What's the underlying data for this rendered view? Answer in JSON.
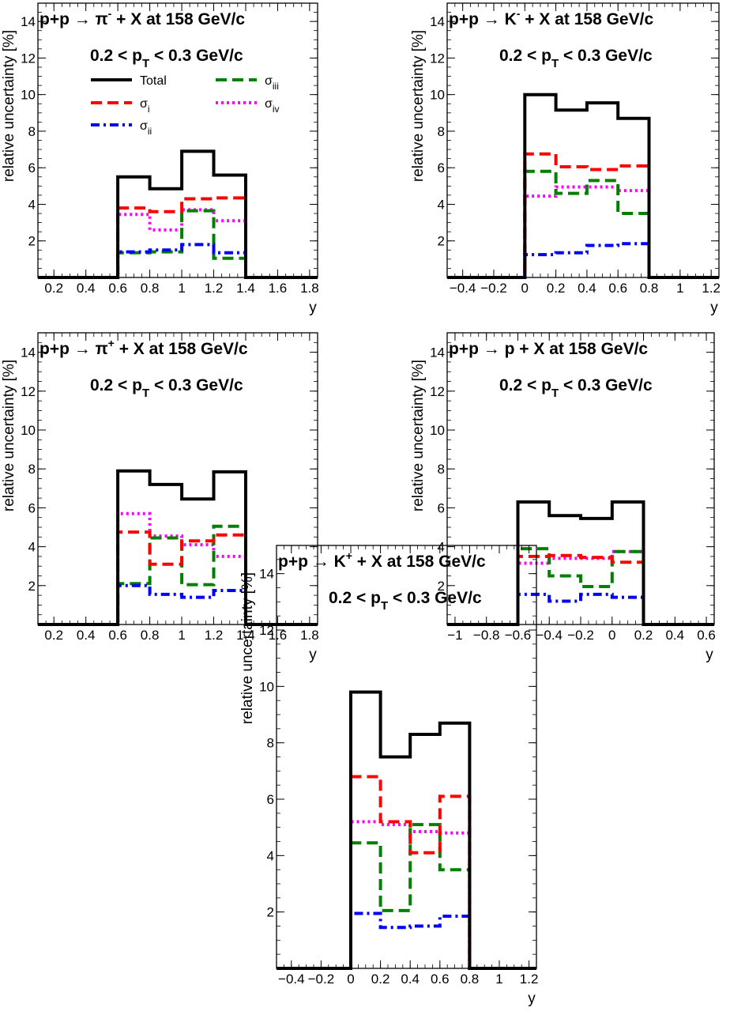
{
  "chart_data": [
    {
      "type": "line",
      "step": true,
      "title": "p+p → π⁻ + X at 158 GeV/c",
      "title_parts": {
        "lhs": "p+p",
        "arrow": "→",
        "particle": "π",
        "charge": "-",
        "rhs": "+ X at 158 GeV/c"
      },
      "subtitle_parts": {
        "pre": "0.2 < p",
        "sub": "T",
        "post": "< 0.3  GeV/c"
      },
      "xlabel": "y",
      "ylabel": "relative uncertainty [%]",
      "xlim": [
        0.1,
        1.85
      ],
      "ylim": [
        0,
        15
      ],
      "xticks": [
        0.2,
        0.4,
        0.6,
        0.8,
        1,
        1.2,
        1.4,
        1.6,
        1.8
      ],
      "xtick_labels": [
        "0.2",
        "0.4",
        "0.6",
        "0.8",
        "1",
        "1.2",
        "1.4",
        "1.6",
        "1.8"
      ],
      "yticks": [
        2,
        4,
        6,
        8,
        10,
        12,
        14
      ],
      "ytick_labels": [
        "2",
        "4",
        "6",
        "8",
        "10",
        "12",
        "14"
      ],
      "bin_edges": [
        0.1,
        0.6,
        0.8,
        1.0,
        1.2,
        1.4,
        1.85
      ],
      "legend": {
        "show": true,
        "placement": "top-left"
      },
      "series": [
        {
          "name": "Total",
          "color": "#000000",
          "style": "solid",
          "values": [
            0,
            5.5,
            4.85,
            6.9,
            5.6,
            0
          ]
        },
        {
          "name": "σ_i",
          "color": "#ff0000",
          "style": "dash",
          "values": [
            0,
            3.8,
            3.6,
            4.3,
            4.35,
            0
          ]
        },
        {
          "name": "σ_ii",
          "color": "#0000ff",
          "style": "dashdot",
          "values": [
            0,
            1.4,
            1.5,
            1.8,
            1.35,
            0
          ]
        },
        {
          "name": "σ_iii",
          "color": "#008000",
          "style": "dash",
          "values": [
            0,
            1.35,
            1.4,
            3.65,
            1.05,
            0
          ]
        },
        {
          "name": "σ_iv",
          "color": "#ff00ff",
          "style": "dot",
          "values": [
            0,
            3.45,
            2.6,
            3.7,
            3.1,
            0
          ]
        }
      ]
    },
    {
      "type": "line",
      "step": true,
      "title": "p+p → K⁻ + X at 158 GeV/c",
      "title_parts": {
        "lhs": "p+p",
        "arrow": "→",
        "particle": "K",
        "charge": "-",
        "rhs": "+ X at 158 GeV/c"
      },
      "subtitle_parts": {
        "pre": "0.2 < p",
        "sub": "T",
        "post": "< 0.3  GeV/c"
      },
      "xlabel": "y",
      "ylabel": "relative uncertainty [%]",
      "xlim": [
        -0.5,
        1.25
      ],
      "ylim": [
        0,
        15
      ],
      "xticks": [
        -0.4,
        -0.2,
        0,
        0.2,
        0.4,
        0.6,
        0.8,
        1,
        1.2
      ],
      "xtick_labels": [
        "−0.4",
        "−0.2",
        "0",
        "0.2",
        "0.4",
        "0.6",
        "0.8",
        "1",
        "1.2"
      ],
      "yticks": [
        2,
        4,
        6,
        8,
        10,
        12,
        14
      ],
      "ytick_labels": [
        "2",
        "4",
        "6",
        "8",
        "10",
        "12",
        "14"
      ],
      "bin_edges": [
        -0.5,
        0.0,
        0.2,
        0.4,
        0.6,
        0.8,
        1.25
      ],
      "legend": {
        "show": false
      },
      "series": [
        {
          "name": "Total",
          "color": "#000000",
          "style": "solid",
          "values": [
            0,
            10.0,
            9.15,
            9.55,
            8.7,
            0
          ]
        },
        {
          "name": "σ_i",
          "color": "#ff0000",
          "style": "dash",
          "values": [
            0,
            6.75,
            6.05,
            5.9,
            6.1,
            0
          ]
        },
        {
          "name": "σ_ii",
          "color": "#0000ff",
          "style": "dashdot",
          "values": [
            0,
            1.25,
            1.35,
            1.75,
            1.85,
            0
          ]
        },
        {
          "name": "σ_iii",
          "color": "#008000",
          "style": "dash",
          "values": [
            0,
            5.8,
            4.6,
            5.3,
            3.5,
            0
          ]
        },
        {
          "name": "σ_iv",
          "color": "#ff00ff",
          "style": "dot",
          "values": [
            0,
            4.45,
            4.95,
            4.95,
            4.75,
            0
          ]
        }
      ]
    },
    {
      "type": "line",
      "step": true,
      "title": "p+p → π⁺ + X at 158 GeV/c",
      "title_parts": {
        "lhs": "p+p",
        "arrow": "→",
        "particle": "π",
        "charge": "+",
        "rhs": "+ X at 158 GeV/c"
      },
      "subtitle_parts": {
        "pre": "0.2 < p",
        "sub": "T",
        "post": "< 0.3  GeV/c"
      },
      "xlabel": "y",
      "ylabel": "relative uncertainty [%]",
      "xlim": [
        0.1,
        1.85
      ],
      "ylim": [
        0,
        15
      ],
      "xticks": [
        0.2,
        0.4,
        0.6,
        0.8,
        1,
        1.2,
        1.4,
        1.6,
        1.8
      ],
      "xtick_labels": [
        "0.2",
        "0.4",
        "0.6",
        "0.8",
        "1",
        "1.2",
        "1.4",
        "1.6",
        "1.8"
      ],
      "yticks": [
        2,
        4,
        6,
        8,
        10,
        12,
        14
      ],
      "ytick_labels": [
        "2",
        "4",
        "6",
        "8",
        "10",
        "12",
        "14"
      ],
      "bin_edges": [
        0.1,
        0.6,
        0.8,
        1.0,
        1.2,
        1.4,
        1.85
      ],
      "legend": {
        "show": false
      },
      "series": [
        {
          "name": "Total",
          "color": "#000000",
          "style": "solid",
          "values": [
            0,
            7.9,
            7.2,
            6.45,
            7.85,
            0
          ]
        },
        {
          "name": "σ_i",
          "color": "#ff0000",
          "style": "dash",
          "values": [
            0,
            4.75,
            3.1,
            4.3,
            4.6,
            0
          ]
        },
        {
          "name": "σ_ii",
          "color": "#0000ff",
          "style": "dashdot",
          "values": [
            0,
            2.0,
            1.55,
            1.4,
            1.75,
            0
          ]
        },
        {
          "name": "σ_iii",
          "color": "#008000",
          "style": "dash",
          "values": [
            0,
            2.1,
            4.45,
            2.05,
            5.05,
            0
          ]
        },
        {
          "name": "σ_iv",
          "color": "#ff00ff",
          "style": "dot",
          "values": [
            0,
            5.7,
            4.55,
            4.1,
            3.5,
            0
          ]
        }
      ]
    },
    {
      "type": "line",
      "step": true,
      "title": "p+p → p + X at 158 GeV/c",
      "title_parts": {
        "lhs": "p+p",
        "arrow": "→",
        "particle": "p",
        "charge": "",
        "rhs": "+ X at 158 GeV/c"
      },
      "subtitle_parts": {
        "pre": "0.2 < p",
        "sub": "T",
        "post": "< 0.3  GeV/c"
      },
      "xlabel": "y",
      "ylabel": "relative uncertainty [%]",
      "xlim": [
        -1.05,
        0.65
      ],
      "ylim": [
        0,
        15
      ],
      "xticks": [
        -1,
        -0.8,
        -0.6,
        -0.4,
        -0.2,
        0,
        0.2,
        0.4,
        0.6
      ],
      "xtick_labels": [
        "−1",
        "−0.8",
        "−0.6",
        "−0.4",
        "−0.2",
        "0",
        "0.2",
        "0.4",
        "0.6"
      ],
      "yticks": [
        2,
        4,
        6,
        8,
        10,
        12,
        14
      ],
      "ytick_labels": [
        "2",
        "4",
        "6",
        "8",
        "10",
        "12",
        "14"
      ],
      "bin_edges": [
        -1.05,
        -0.6,
        -0.4,
        -0.2,
        0.0,
        0.2,
        0.65
      ],
      "legend": {
        "show": false
      },
      "series": [
        {
          "name": "Total",
          "color": "#000000",
          "style": "solid",
          "values": [
            0,
            6.3,
            5.6,
            5.45,
            6.3,
            0
          ]
        },
        {
          "name": "σ_i",
          "color": "#ff0000",
          "style": "dash",
          "values": [
            0,
            3.5,
            3.55,
            3.45,
            3.2,
            0
          ]
        },
        {
          "name": "σ_ii",
          "color": "#0000ff",
          "style": "dashdot",
          "values": [
            0,
            1.55,
            1.2,
            1.55,
            1.4,
            0
          ]
        },
        {
          "name": "σ_iii",
          "color": "#008000",
          "style": "dash",
          "values": [
            0,
            3.9,
            2.5,
            1.95,
            3.75,
            0
          ]
        },
        {
          "name": "σ_iv",
          "color": "#ff00ff",
          "style": "dot",
          "values": [
            0,
            3.15,
            3.4,
            3.4,
            3.75,
            0
          ]
        }
      ]
    },
    {
      "type": "line",
      "step": true,
      "title": "p+p → K⁺ + X at 158 GeV/c",
      "title_parts": {
        "lhs": "p+p",
        "arrow": "→",
        "particle": "K",
        "charge": "+",
        "rhs": "+ X at 158 GeV/c"
      },
      "subtitle_parts": {
        "pre": "0.2 < p",
        "sub": "T",
        "post": "< 0.3  GeV/c"
      },
      "xlabel": "y",
      "ylabel": "relative uncertainty [%]",
      "xlim": [
        -0.5,
        1.25
      ],
      "ylim": [
        0,
        15
      ],
      "xticks": [
        -0.4,
        -0.2,
        0,
        0.2,
        0.4,
        0.6,
        0.8,
        1,
        1.2
      ],
      "xtick_labels": [
        "−0.4",
        "−0.2",
        "0",
        "0.2",
        "0.4",
        "0.6",
        "0.8",
        "1",
        "1.2"
      ],
      "yticks": [
        2,
        4,
        6,
        8,
        10,
        12,
        14
      ],
      "ytick_labels": [
        "2",
        "4",
        "6",
        "8",
        "10",
        "12",
        "14"
      ],
      "bin_edges": [
        -0.5,
        0.0,
        0.2,
        0.4,
        0.6,
        0.8,
        1.25
      ],
      "legend": {
        "show": false
      },
      "series": [
        {
          "name": "Total",
          "color": "#000000",
          "style": "solid",
          "values": [
            0,
            9.8,
            7.5,
            8.3,
            8.7,
            0
          ]
        },
        {
          "name": "σ_i",
          "color": "#ff0000",
          "style": "dash",
          "values": [
            0,
            6.8,
            5.2,
            4.1,
            6.1,
            0
          ]
        },
        {
          "name": "σ_ii",
          "color": "#0000ff",
          "style": "dashdot",
          "values": [
            0,
            1.95,
            1.45,
            1.5,
            1.85,
            0
          ]
        },
        {
          "name": "σ_iii",
          "color": "#008000",
          "style": "dash",
          "values": [
            0,
            4.45,
            2.05,
            5.1,
            3.5,
            0
          ]
        },
        {
          "name": "σ_iv",
          "color": "#ff00ff",
          "style": "dot",
          "values": [
            0,
            5.2,
            5.1,
            4.85,
            4.8,
            0
          ]
        }
      ]
    }
  ]
}
